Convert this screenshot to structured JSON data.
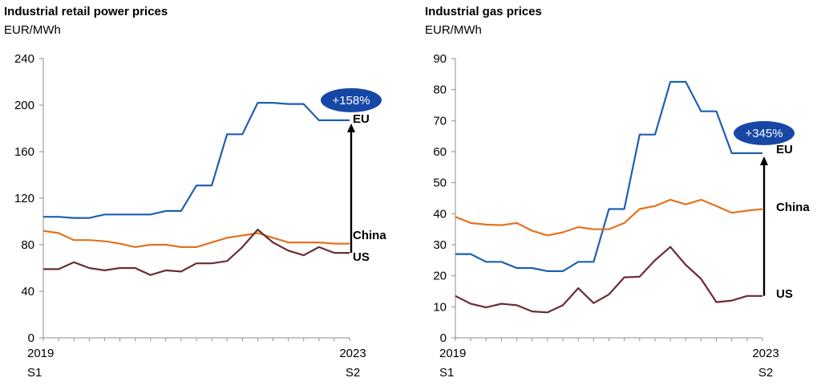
{
  "chart_data": [
    {
      "type": "line",
      "title": "Industrial retail power prices",
      "ylabel": "EUR/MWh",
      "ylim": [
        0,
        240
      ],
      "yticks": [
        0,
        40,
        80,
        120,
        160,
        200,
        240
      ],
      "x_start_label": [
        "2019",
        "S1"
      ],
      "x_end_label": [
        "2023",
        "S2"
      ],
      "n_points": 21,
      "grid": false,
      "series": [
        {
          "name": "EU",
          "color": "#1F5FB0",
          "values": [
            104,
            104,
            103,
            103,
            106,
            106,
            106,
            106,
            109,
            109,
            131,
            131,
            175,
            175,
            202,
            202,
            201,
            201,
            187,
            187,
            187
          ]
        },
        {
          "name": "China",
          "color": "#E4731E",
          "values": [
            92,
            90,
            84,
            84,
            83,
            81,
            78,
            80,
            80,
            78,
            78,
            82,
            86,
            88,
            90,
            86,
            82,
            82,
            82,
            81,
            81
          ]
        },
        {
          "name": "US",
          "color": "#6B2C36",
          "values": [
            59,
            59,
            65,
            60,
            58,
            60,
            60,
            54,
            58,
            57,
            64,
            64,
            66,
            78,
            93,
            82,
            75,
            71,
            78,
            73,
            73
          ]
        }
      ],
      "annotation": {
        "label": "+158%",
        "from_series": "US",
        "to_series": "EU"
      }
    },
    {
      "type": "line",
      "title": "Industrial gas prices",
      "ylabel": "EUR/MWh",
      "ylim": [
        0,
        90
      ],
      "yticks": [
        0,
        10,
        20,
        30,
        40,
        50,
        60,
        70,
        80,
        90
      ],
      "x_start_label": [
        "2019",
        "S1"
      ],
      "x_end_label": [
        "2023",
        "S2"
      ],
      "n_points": 21,
      "grid": false,
      "series": [
        {
          "name": "EU",
          "color": "#1F5FB0",
          "values": [
            27,
            27,
            24.5,
            24.5,
            22.5,
            22.5,
            21.5,
            21.5,
            24.5,
            24.5,
            41.5,
            41.5,
            65.5,
            65.5,
            82.5,
            82.5,
            73,
            73,
            59.5,
            59.5,
            59.5
          ]
        },
        {
          "name": "China",
          "color": "#E4731E",
          "values": [
            39,
            37,
            36.5,
            36.3,
            37,
            34.5,
            33,
            34,
            35.7,
            35,
            35,
            37,
            41.5,
            42.5,
            44.5,
            43,
            44.5,
            42.5,
            40.3,
            41,
            41.5
          ]
        },
        {
          "name": "US",
          "color": "#6B2C36",
          "values": [
            13.5,
            11,
            9.8,
            11,
            10.5,
            8.5,
            8.2,
            10.5,
            16,
            11.2,
            14,
            19.5,
            19.7,
            25,
            29.3,
            23.5,
            19,
            11.5,
            12,
            13.5,
            13.5
          ]
        }
      ],
      "annotation": {
        "label": "+345%",
        "from_series": "US",
        "to_series": "EU"
      }
    }
  ]
}
